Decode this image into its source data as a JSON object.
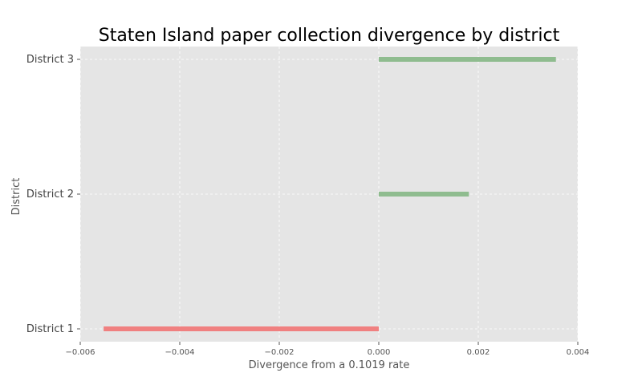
{
  "chart_data": {
    "type": "bar",
    "orientation": "horizontal",
    "title": "Staten Island paper collection divergence by district",
    "xlabel": "Divergence from a 0.1019 rate",
    "ylabel": "District",
    "categories": [
      "District 1",
      "District 2",
      "District 3"
    ],
    "values": [
      -0.00553,
      0.00181,
      0.00356
    ],
    "xlim": [
      -0.006,
      0.004
    ],
    "xticks": [
      -0.006,
      -0.004,
      -0.002,
      0.0,
      0.002,
      0.004
    ],
    "xtick_labels": [
      "−0.006",
      "−0.004",
      "−0.002",
      "0.000",
      "0.002",
      "0.004"
    ],
    "grid": true,
    "colors": {
      "positive": "#8fbc8f",
      "negative": "#f08080",
      "background": "#e5e5e5",
      "grid": "#ffffff"
    }
  }
}
